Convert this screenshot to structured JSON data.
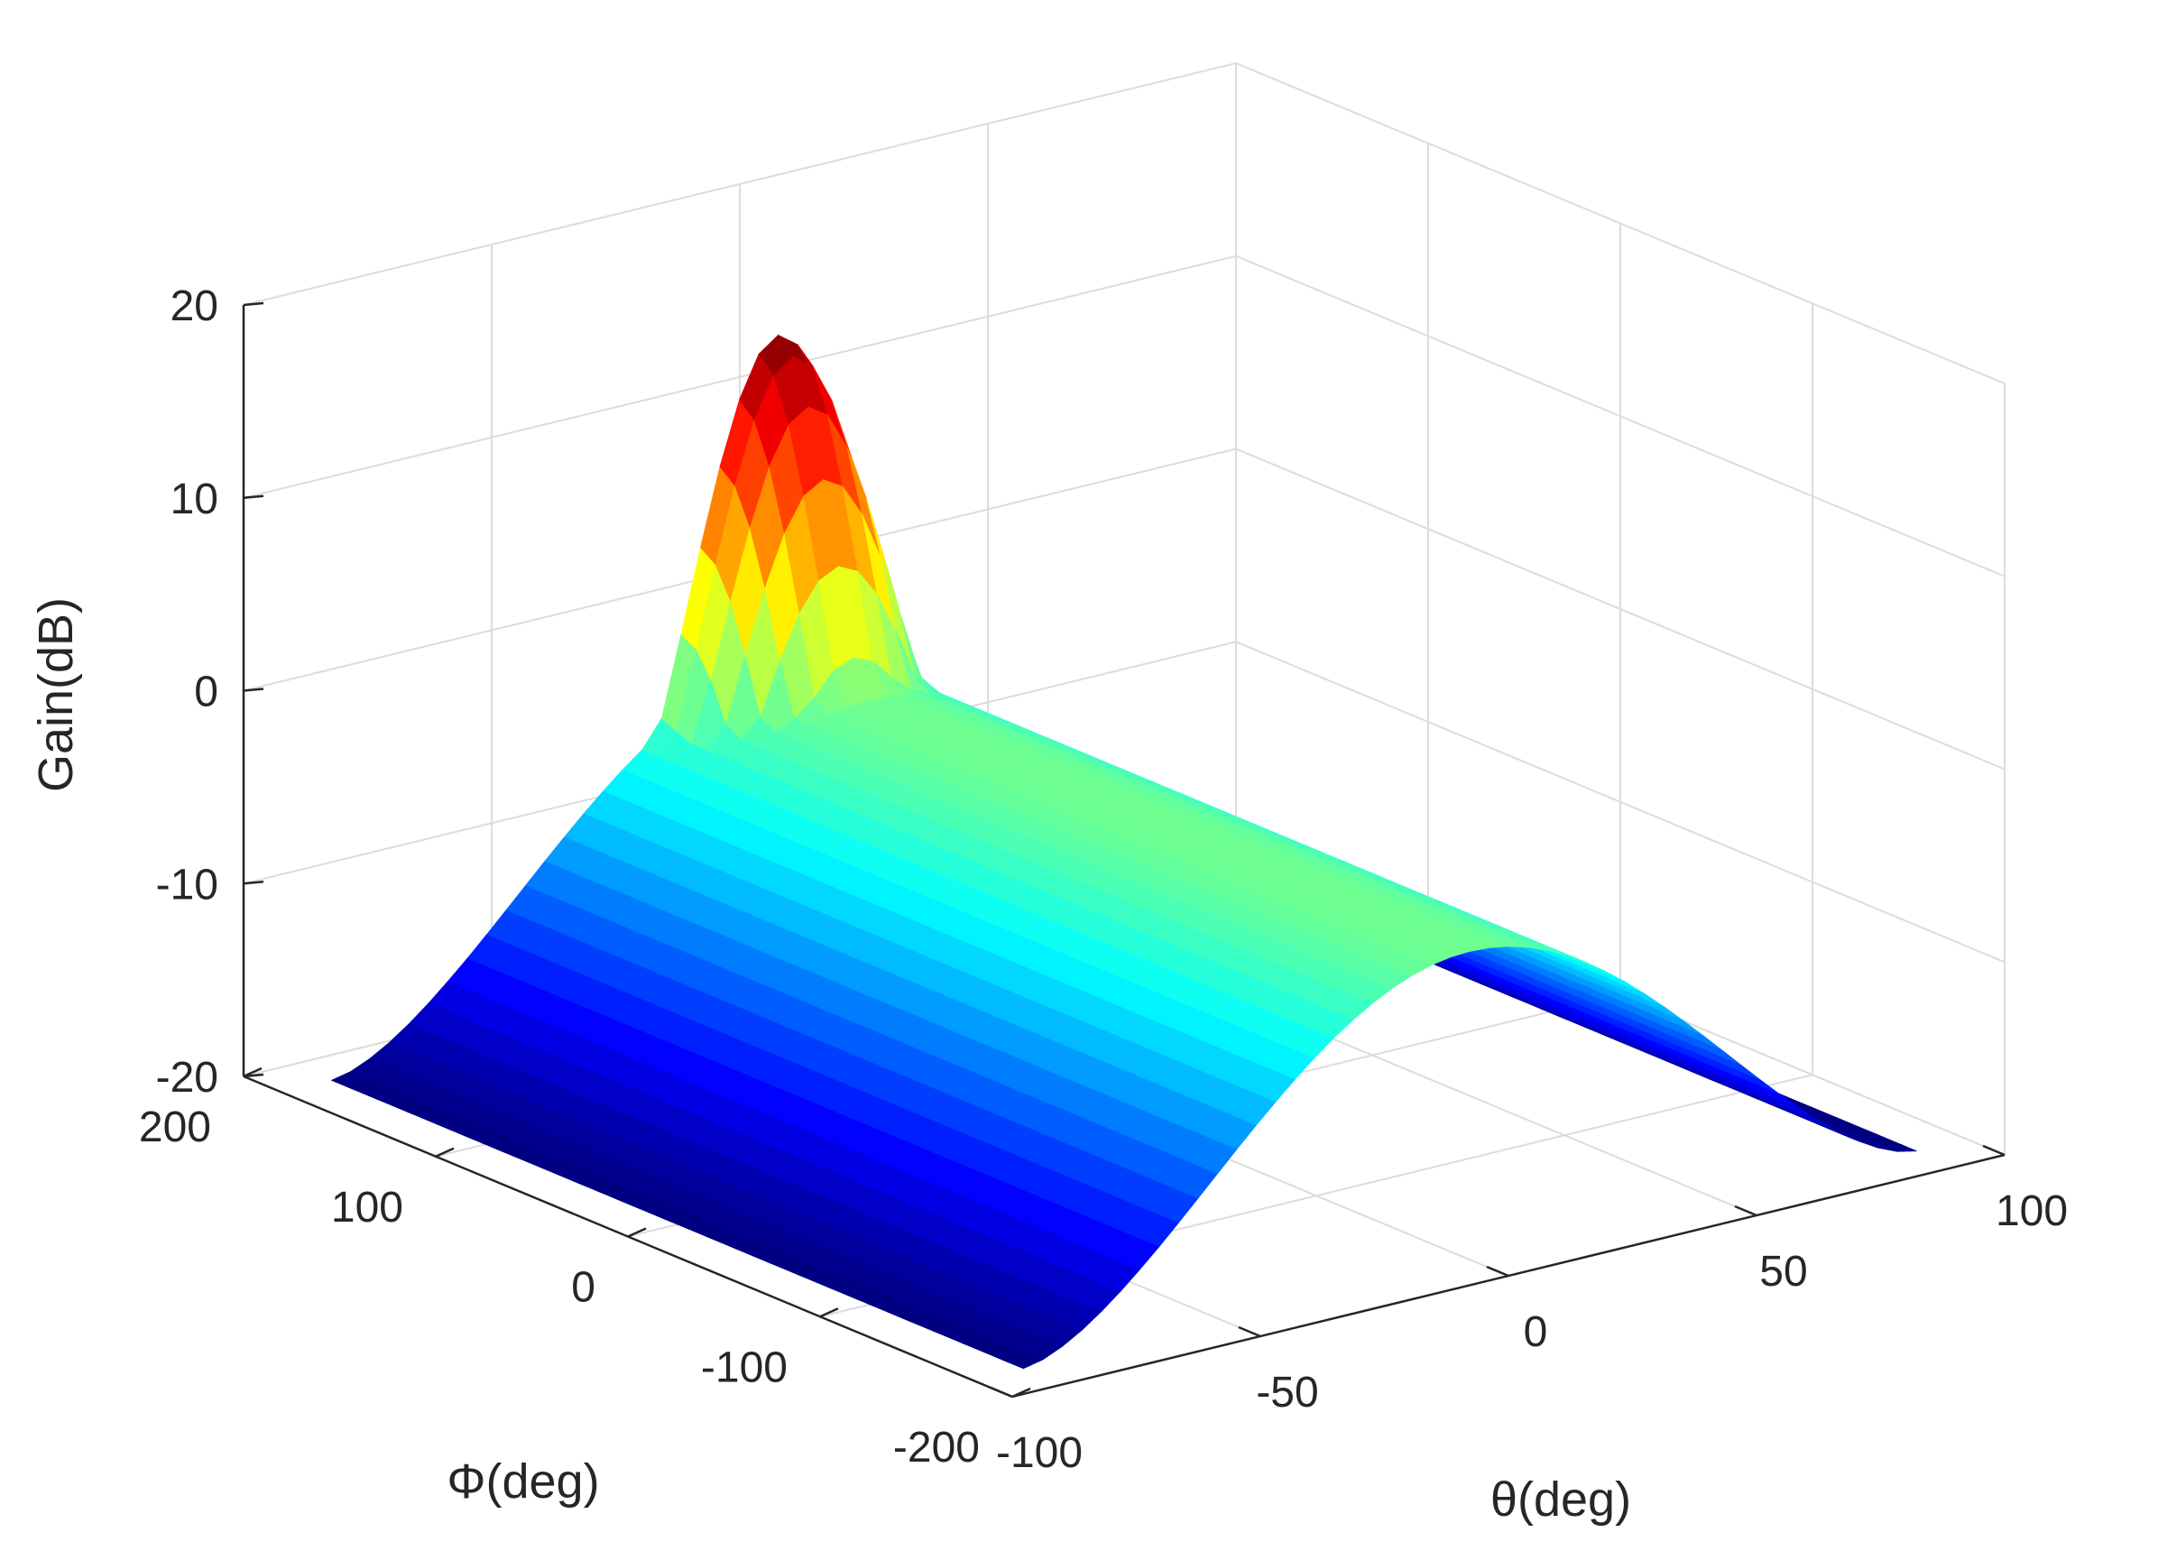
{
  "chart_data": {
    "type": "surface",
    "title": "",
    "xlabel": "θ(deg)",
    "ylabel": "Φ(deg)",
    "zlabel": "Gain(dB)",
    "xlim": [
      -100,
      100
    ],
    "ylim": [
      -200,
      200
    ],
    "zlim": [
      -20,
      20
    ],
    "x_ticks": [
      "-100",
      "-50",
      "0",
      "50",
      "100"
    ],
    "y_ticks": [
      "-200",
      "-100",
      "0",
      "100",
      "200"
    ],
    "z_ticks": [
      "-20",
      "-10",
      "0",
      "10",
      "20"
    ],
    "grid": true,
    "colormap": "jet",
    "colors": {
      "axis": "#262626",
      "grid": "#dcdcdc",
      "background": "#ffffff"
    },
    "surface": {
      "theta_range": [
        -90,
        90
      ],
      "phi_range": [
        -180,
        180
      ],
      "floor_gain": -20,
      "ridge_gain": -4,
      "ridge_center_theta": 0,
      "peak_gain": 13,
      "peak_theta": 0,
      "peak_phi": 180
    }
  }
}
